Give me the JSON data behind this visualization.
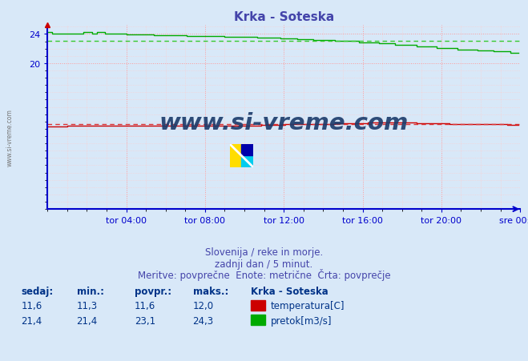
{
  "title": "Krka - Soteska",
  "title_color": "#4444aa",
  "bg_color": "#d8e8f8",
  "plot_bg_color": "#d8e8f8",
  "grid_color_major": "#ff9999",
  "grid_color_minor": "#ffcccc",
  "ylim_min": 0,
  "ylim_max": 25.3,
  "yticks": [
    20,
    24
  ],
  "xlim_min": 0,
  "xlim_max": 288,
  "xtick_labels": [
    "tor 04:00",
    "tor 08:00",
    "tor 12:00",
    "tor 16:00",
    "tor 20:00",
    "sre 00:00"
  ],
  "xtick_positions": [
    48,
    96,
    144,
    192,
    240,
    288
  ],
  "temp_avg": 11.6,
  "flow_avg": 23.1,
  "temp_color": "#cc0000",
  "flow_color": "#00aa00",
  "avg_line_color_temp": "#dd3333",
  "avg_line_color_flow": "#33cc33",
  "axis_color": "#0000cc",
  "tick_color": "#0000cc",
  "watermark_text": "www.si-vreme.com",
  "watermark_color": "#1a3a6a",
  "side_text": "www.si-vreme.com",
  "subtitle1": "Slovenija / reke in morje.",
  "subtitle2": "zadnji dan / 5 minut.",
  "subtitle3": "Meritve: povprečne  Enote: metrične  Črta: povprečje",
  "table_headers": [
    "sedaj:",
    "min.:",
    "povpr.:",
    "maks.:"
  ],
  "table_row1": [
    "11,6",
    "11,3",
    "11,6",
    "12,0"
  ],
  "table_row2": [
    "21,4",
    "21,4",
    "23,1",
    "24,3"
  ],
  "station_label": "Krka - Soteska",
  "legend_temp": "temperatura[C]",
  "legend_flow": "pretok[m3/s]",
  "text_color_table": "#003388",
  "logo_colors": [
    "#ffdd00",
    "#00ccff",
    "#0000aa"
  ]
}
